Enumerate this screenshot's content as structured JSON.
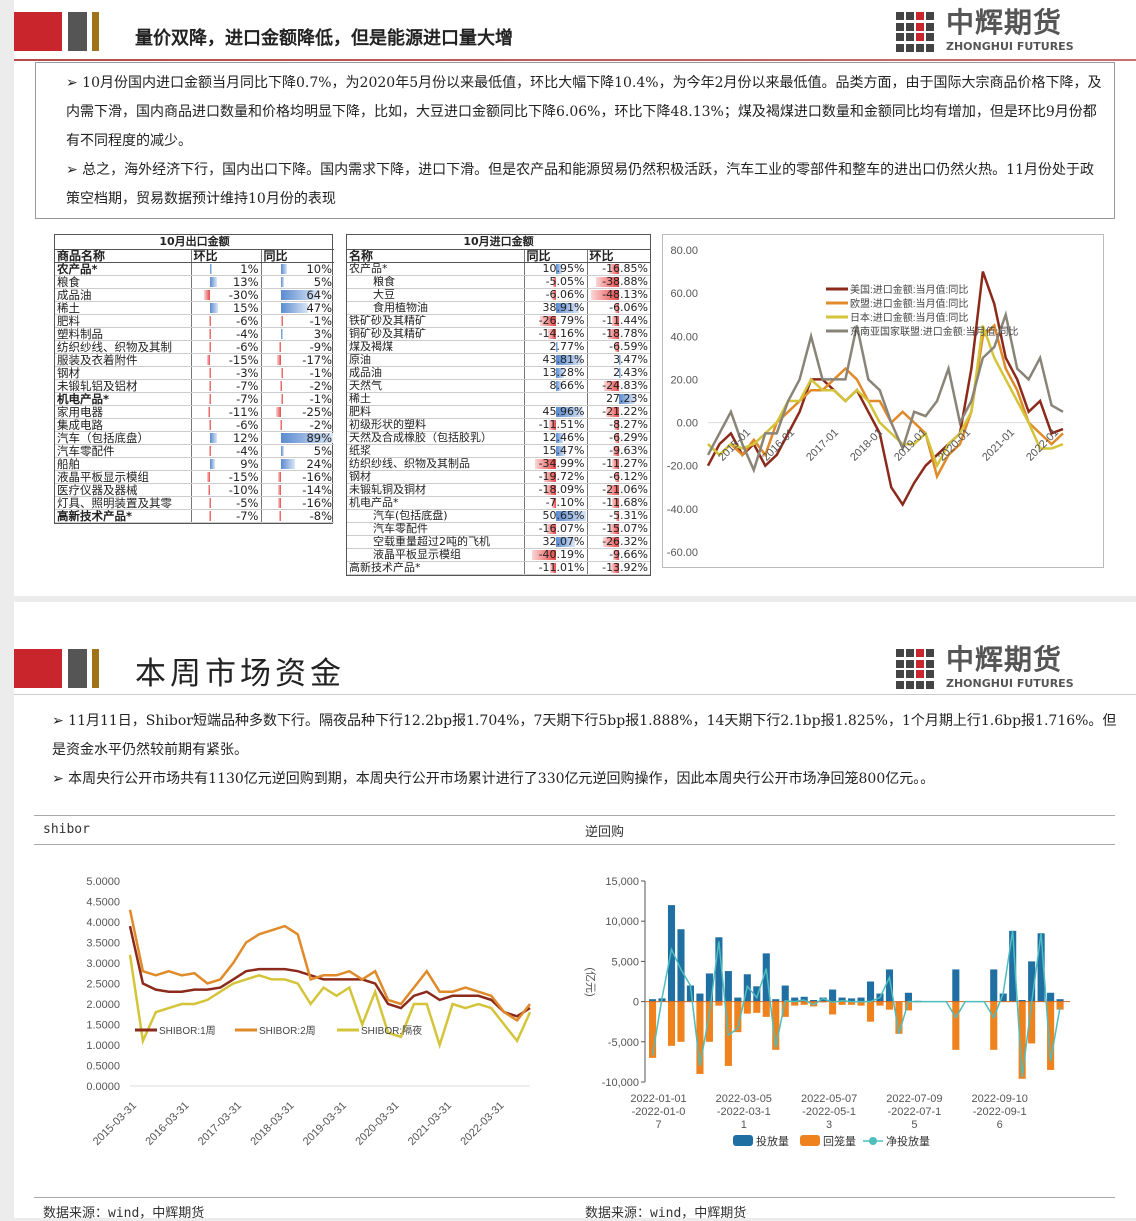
{
  "slide1": {
    "title": "量价双降，进口金额降低，但是能源进口量大增",
    "logo": {
      "cn": "中辉期货",
      "en": "ZHONGHUI FUTURES"
    },
    "bullets": [
      "➢  10月份国内进口金额当月同比下降0.7%，为2020年5月份以来最低值，环比大幅下降10.4%，为今年2月份以来最低值。品类方面，由于国际大宗商品价格下降，及内需下滑，国内商品进口数量和价格均明显下降，比如，大豆进口金额同比下降6.06%，环比下降48.13%；煤及褐煤进口数量和金额同比均有增加，但是环比9月份都有不同程度的减少。",
      "➢  总之，海外经济下行，国内出口下降。国内需求下降，进口下滑。但是农产品和能源贸易仍然积极活跃，汽车工业的零部件和整车的进出口仍然火热。11月份处于政策空档期，贸易数据预计维持10月份的表现"
    ],
    "export_table": {
      "caption": "10月出口金额",
      "headers": [
        "商品名称",
        "环比",
        "同比"
      ],
      "rows": [
        {
          "name": "农产品*",
          "bold": true,
          "a": 1,
          "b": 10
        },
        {
          "name": "粮食",
          "a": 13,
          "b": 5
        },
        {
          "name": "成品油",
          "a": -30,
          "b": 64
        },
        {
          "name": "稀土",
          "a": 15,
          "b": 47
        },
        {
          "name": "肥料",
          "a": -6,
          "b": -1
        },
        {
          "name": "塑料制品",
          "a": -4,
          "b": 3
        },
        {
          "name": "纺织纱线、织物及其制",
          "a": -6,
          "b": -9
        },
        {
          "name": "服装及衣着附件",
          "a": -15,
          "b": -17
        },
        {
          "name": "钢材",
          "a": -3,
          "b": -1
        },
        {
          "name": "未锻轧铝及铝材",
          "a": -7,
          "b": -2
        },
        {
          "name": "机电产品*",
          "bold": true,
          "a": -7,
          "b": -1
        },
        {
          "name": "家用电器",
          "a": -11,
          "b": -25
        },
        {
          "name": "集成电路",
          "a": -6,
          "b": -2
        },
        {
          "name": "汽车（包括底盘）",
          "a": 12,
          "b": 89
        },
        {
          "name": "汽车零配件",
          "a": -4,
          "b": 5
        },
        {
          "name": "船舶",
          "a": 9,
          "b": 24
        },
        {
          "name": "液晶平板显示模组",
          "a": -15,
          "b": -16
        },
        {
          "name": "医疗仪器及器械",
          "a": -10,
          "b": -14
        },
        {
          "name": "灯具、照明装置及其零",
          "a": -5,
          "b": -16
        },
        {
          "name": "高新技术产品*",
          "bold": true,
          "a": -7,
          "b": -8
        }
      ]
    },
    "import_table": {
      "caption": "10月进口金额",
      "headers": [
        "名称",
        "同比",
        "环比"
      ],
      "rows": [
        {
          "name": "农产品*",
          "a": 10.95,
          "b": -16.85
        },
        {
          "name": "粮食",
          "indent": true,
          "a": -5.05,
          "b": -38.88
        },
        {
          "name": "大豆",
          "indent": true,
          "a": -6.06,
          "b": -48.13
        },
        {
          "name": "食用植物油",
          "indent": true,
          "a": 38.91,
          "b": -6.06
        },
        {
          "name": "铁矿砂及其精矿",
          "a": -26.79,
          "b": -11.44
        },
        {
          "name": "铜矿砂及其精矿",
          "a": -14.16,
          "b": -18.78
        },
        {
          "name": "煤及褐煤",
          "a": 2.77,
          "b": -6.59
        },
        {
          "name": "原油",
          "a": 43.81,
          "b": 3.47
        },
        {
          "name": "成品油",
          "a": 13.28,
          "b": 2.43
        },
        {
          "name": "天然气",
          "a": 8.66,
          "b": -24.83
        },
        {
          "name": "稀土",
          "a": null,
          "b": 27.23
        },
        {
          "name": "肥料",
          "a": 45.96,
          "b": -21.22
        },
        {
          "name": "初级形状的塑料",
          "a": -11.51,
          "b": -8.27
        },
        {
          "name": "天然及合成橡胶（包括胶乳）",
          "a": 12.46,
          "b": -6.29
        },
        {
          "name": "纸浆",
          "a": 15.47,
          "b": -9.63
        },
        {
          "name": "纺织纱线、织物及其制品",
          "a": -34.99,
          "b": -11.27
        },
        {
          "name": "钢材",
          "a": -19.72,
          "b": -6.12
        },
        {
          "name": "未锻轧铜及铜材",
          "a": -18.09,
          "b": -21.06
        },
        {
          "name": "机电产品*",
          "a": -7.1,
          "b": -11.68
        },
        {
          "name": "汽车(包括底盘)",
          "indent": true,
          "a": 50.65,
          "b": -5.31
        },
        {
          "name": "汽车零配件",
          "indent": true,
          "a": -16.07,
          "b": -15.07
        },
        {
          "name": "空载重量超过2吨的飞机",
          "indent": true,
          "a": 32.07,
          "b": -26.32
        },
        {
          "name": "液晶平板显示模组",
          "indent": true,
          "a": -40.19,
          "b": -9.66
        },
        {
          "name": "高新技术产品*",
          "a": -11.01,
          "b": -13.92
        }
      ]
    }
  },
  "chart_data": [
    {
      "type": "line",
      "ylim": [
        -60,
        80
      ],
      "yticks": [
        "80.00",
        "60.00",
        "40.00",
        "20.00",
        "0.00",
        "-20.00",
        "-40.00",
        "-60.00"
      ],
      "xticks": [
        "2015-01",
        "2016-01",
        "2017-01",
        "2018-01",
        "2019-01",
        "2020-01",
        "2021-01",
        "2022-01"
      ],
      "x_start": "2015-01",
      "x_step": "quarter",
      "legend": "top-right",
      "series": [
        {
          "name": "美国:进口金额:当月值:同比",
          "color": "#8b2a1a",
          "values": [
            -20,
            -10,
            -5,
            -15,
            -10,
            -20,
            -15,
            -5,
            5,
            20,
            20,
            15,
            10,
            15,
            5,
            -5,
            -30,
            -38,
            -28,
            -20,
            -15,
            -10,
            -5,
            25,
            70,
            55,
            30,
            20,
            5,
            10,
            -5,
            -3
          ]
        },
        {
          "name": "欧盟:进口金额:当月值:同比",
          "color": "#e08a2a",
          "values": [
            -10,
            -15,
            -10,
            -15,
            -8,
            -15,
            0,
            5,
            10,
            15,
            15,
            20,
            25,
            20,
            10,
            10,
            0,
            5,
            0,
            -5,
            -25,
            -15,
            -10,
            5,
            40,
            45,
            25,
            15,
            0,
            -5,
            -10,
            -5
          ]
        },
        {
          "name": "日本:进口金额:当月值:同比",
          "color": "#d4c43a",
          "values": [
            -10,
            -15,
            -10,
            -12,
            -10,
            -5,
            0,
            10,
            10,
            20,
            15,
            15,
            10,
            15,
            10,
            0,
            -5,
            -10,
            -10,
            -5,
            -20,
            -10,
            -5,
            5,
            45,
            30,
            20,
            10,
            0,
            -12,
            -12,
            -10
          ]
        },
        {
          "name": "东南亚国家联盟:进口金额:当月值:同比",
          "color": "#8a8478",
          "values": [
            -15,
            -5,
            5,
            -10,
            -22,
            -5,
            -5,
            10,
            20,
            40,
            20,
            20,
            20,
            45,
            20,
            15,
            0,
            -12,
            5,
            3,
            10,
            25,
            0,
            10,
            30,
            35,
            50,
            25,
            20,
            30,
            8,
            5
          ]
        }
      ]
    },
    {
      "type": "line",
      "title": "shibor",
      "ylim": [
        0,
        5
      ],
      "yticks": [
        "5.0000",
        "4.5000",
        "4.0000",
        "3.5000",
        "3.0000",
        "2.5000",
        "2.0000",
        "1.5000",
        "1.0000",
        "0.5000",
        "0.0000"
      ],
      "xticks": [
        "2015-03-31",
        "2016-03-31",
        "2017-03-31",
        "2018-03-31",
        "2019-03-31",
        "2020-03-31",
        "2021-03-31",
        "2022-03-31"
      ],
      "x_start": "2015-03-31",
      "x_step": "quarter",
      "legend": "inside-middle",
      "series": [
        {
          "name": "SHIBOR:1周",
          "color": "#8b2a1a",
          "values": [
            3.9,
            2.5,
            2.35,
            2.3,
            2.3,
            2.35,
            2.35,
            2.4,
            2.6,
            2.8,
            2.85,
            2.85,
            2.85,
            2.8,
            2.7,
            2.6,
            2.6,
            2.6,
            2.6,
            2.5,
            2.0,
            1.9,
            2.2,
            2.3,
            2.1,
            2.2,
            2.2,
            2.2,
            2.1,
            1.8,
            1.7,
            1.9
          ]
        },
        {
          "name": "SHIBOR:2周",
          "color": "#e08a2a",
          "values": [
            4.3,
            2.8,
            2.7,
            2.8,
            2.7,
            2.75,
            2.5,
            2.6,
            3.0,
            3.5,
            3.7,
            3.8,
            3.9,
            3.7,
            2.6,
            2.7,
            2.7,
            2.8,
            2.6,
            2.8,
            2.1,
            2.0,
            2.4,
            2.8,
            2.3,
            2.3,
            2.4,
            2.3,
            2.2,
            1.8,
            1.6,
            2.0
          ]
        },
        {
          "name": "SHIBOR:隔夜",
          "color": "#d4c43a",
          "values": [
            3.2,
            1.1,
            1.8,
            1.9,
            2.0,
            2.0,
            2.1,
            2.3,
            2.5,
            2.6,
            2.7,
            2.6,
            2.6,
            2.5,
            2.0,
            2.4,
            2.2,
            2.4,
            1.5,
            2.3,
            1.3,
            1.2,
            2.0,
            2.0,
            1.0,
            2.0,
            1.9,
            2.0,
            1.9,
            1.5,
            1.1,
            1.8
          ]
        }
      ]
    },
    {
      "type": "bar",
      "title": "逆回购",
      "ylabel": "(亿元)",
      "ylim": [
        -10000,
        15000
      ],
      "yticks": [
        "15,000",
        "10,000",
        "5,000",
        "0",
        "-5,000",
        "-10,000"
      ],
      "xticks": [
        [
          "2022-01-01",
          "-2022-01-0",
          "7"
        ],
        [
          "2022-03-05",
          "-2022-03-1",
          "1"
        ],
        [
          "2022-05-07",
          "-2022-05-1",
          "3"
        ],
        [
          "2022-07-09",
          "-2022-07-1",
          "5"
        ],
        [
          "2022-09-10",
          "-2022-09-1",
          "6"
        ]
      ],
      "x_start": "2022-01-01",
      "x_step": "week",
      "legend": "bottom",
      "series": [
        {
          "name": "投放量",
          "color": "#1f6fa3",
          "values": [
            300,
            400,
            12000,
            9000,
            2000,
            1000,
            3500,
            8000,
            3800,
            500,
            3400,
            1900,
            6000,
            300,
            2000,
            500,
            600,
            200,
            500,
            1500,
            500,
            400,
            500,
            2500,
            1000,
            4000,
            0,
            1100,
            100,
            0,
            0,
            0,
            4000,
            0,
            0,
            0,
            4000,
            1000,
            8800,
            200,
            5000,
            8500,
            1100,
            300
          ]
        },
        {
          "name": "回笼量",
          "color": "#f0821e",
          "values": [
            -7000,
            0,
            -5500,
            -5000,
            0,
            -9000,
            -5000,
            -500,
            -8000,
            -3800,
            -1500,
            -1400,
            -1900,
            -6000,
            -1900,
            -500,
            -400,
            -600,
            -100,
            -1600,
            -400,
            -400,
            -500,
            -2500,
            -500,
            -1000,
            -4000,
            -1100,
            -100,
            0,
            0,
            0,
            -6000,
            0,
            0,
            0,
            -6000,
            0,
            0,
            -9600,
            -5200,
            0,
            -8500,
            -1000
          ]
        },
        {
          "name": "净投放量",
          "color": "#4dbdbd",
          "type": "line"
        }
      ]
    }
  ],
  "slide2": {
    "title": "本周市场资金",
    "logo": {
      "cn": "中辉期货",
      "en": "ZHONGHUI FUTURES"
    },
    "bullets": [
      "➢  11月11日，Shibor短端品种多数下行。隔夜品种下行12.2bp报1.704%，7天期下行5bp报1.888%，14天期下行2.1bp报1.825%，1个月期上行1.6bp报1.716%。但是资金水平仍然较前期有紧张。",
      "➢  本周央行公开市场共有1130亿元逆回购到期，本周央行公开市场累计进行了330亿元逆回购操作，因此本周央行公开市场净回笼800亿元。。"
    ],
    "panel_left": "shibor",
    "panel_right": "逆回购",
    "source_left": "数据来源：wind，中辉期货",
    "source_right": "数据来源：wind，中辉期货"
  }
}
